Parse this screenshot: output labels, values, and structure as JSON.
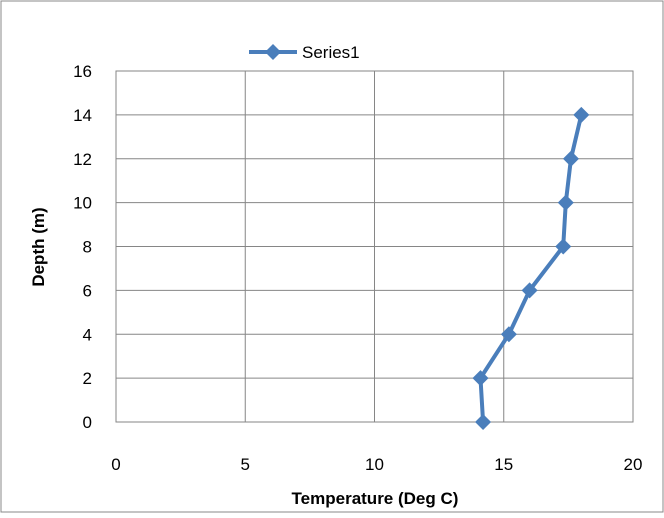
{
  "chart_data": {
    "type": "line",
    "xlabel": "Temperature  (Deg C)",
    "ylabel": "Depth (m)",
    "xlim": [
      0,
      20
    ],
    "ylim": [
      0,
      16
    ],
    "x_ticks": [
      0,
      5,
      10,
      15,
      20
    ],
    "y_ticks": [
      0,
      2,
      4,
      6,
      8,
      10,
      12,
      14,
      16
    ],
    "grid": true,
    "legend_position": "top",
    "series": [
      {
        "name": "Series1",
        "color": "#4a7ebb",
        "marker": "diamond",
        "points": [
          {
            "x": 14.2,
            "y": 0
          },
          {
            "x": 14.1,
            "y": 2
          },
          {
            "x": 15.2,
            "y": 4
          },
          {
            "x": 16.0,
            "y": 6
          },
          {
            "x": 17.3,
            "y": 8
          },
          {
            "x": 17.4,
            "y": 10
          },
          {
            "x": 17.6,
            "y": 12
          },
          {
            "x": 18.0,
            "y": 14
          }
        ]
      }
    ],
    "frame_color": "#888888",
    "grid_color": "#868686"
  }
}
